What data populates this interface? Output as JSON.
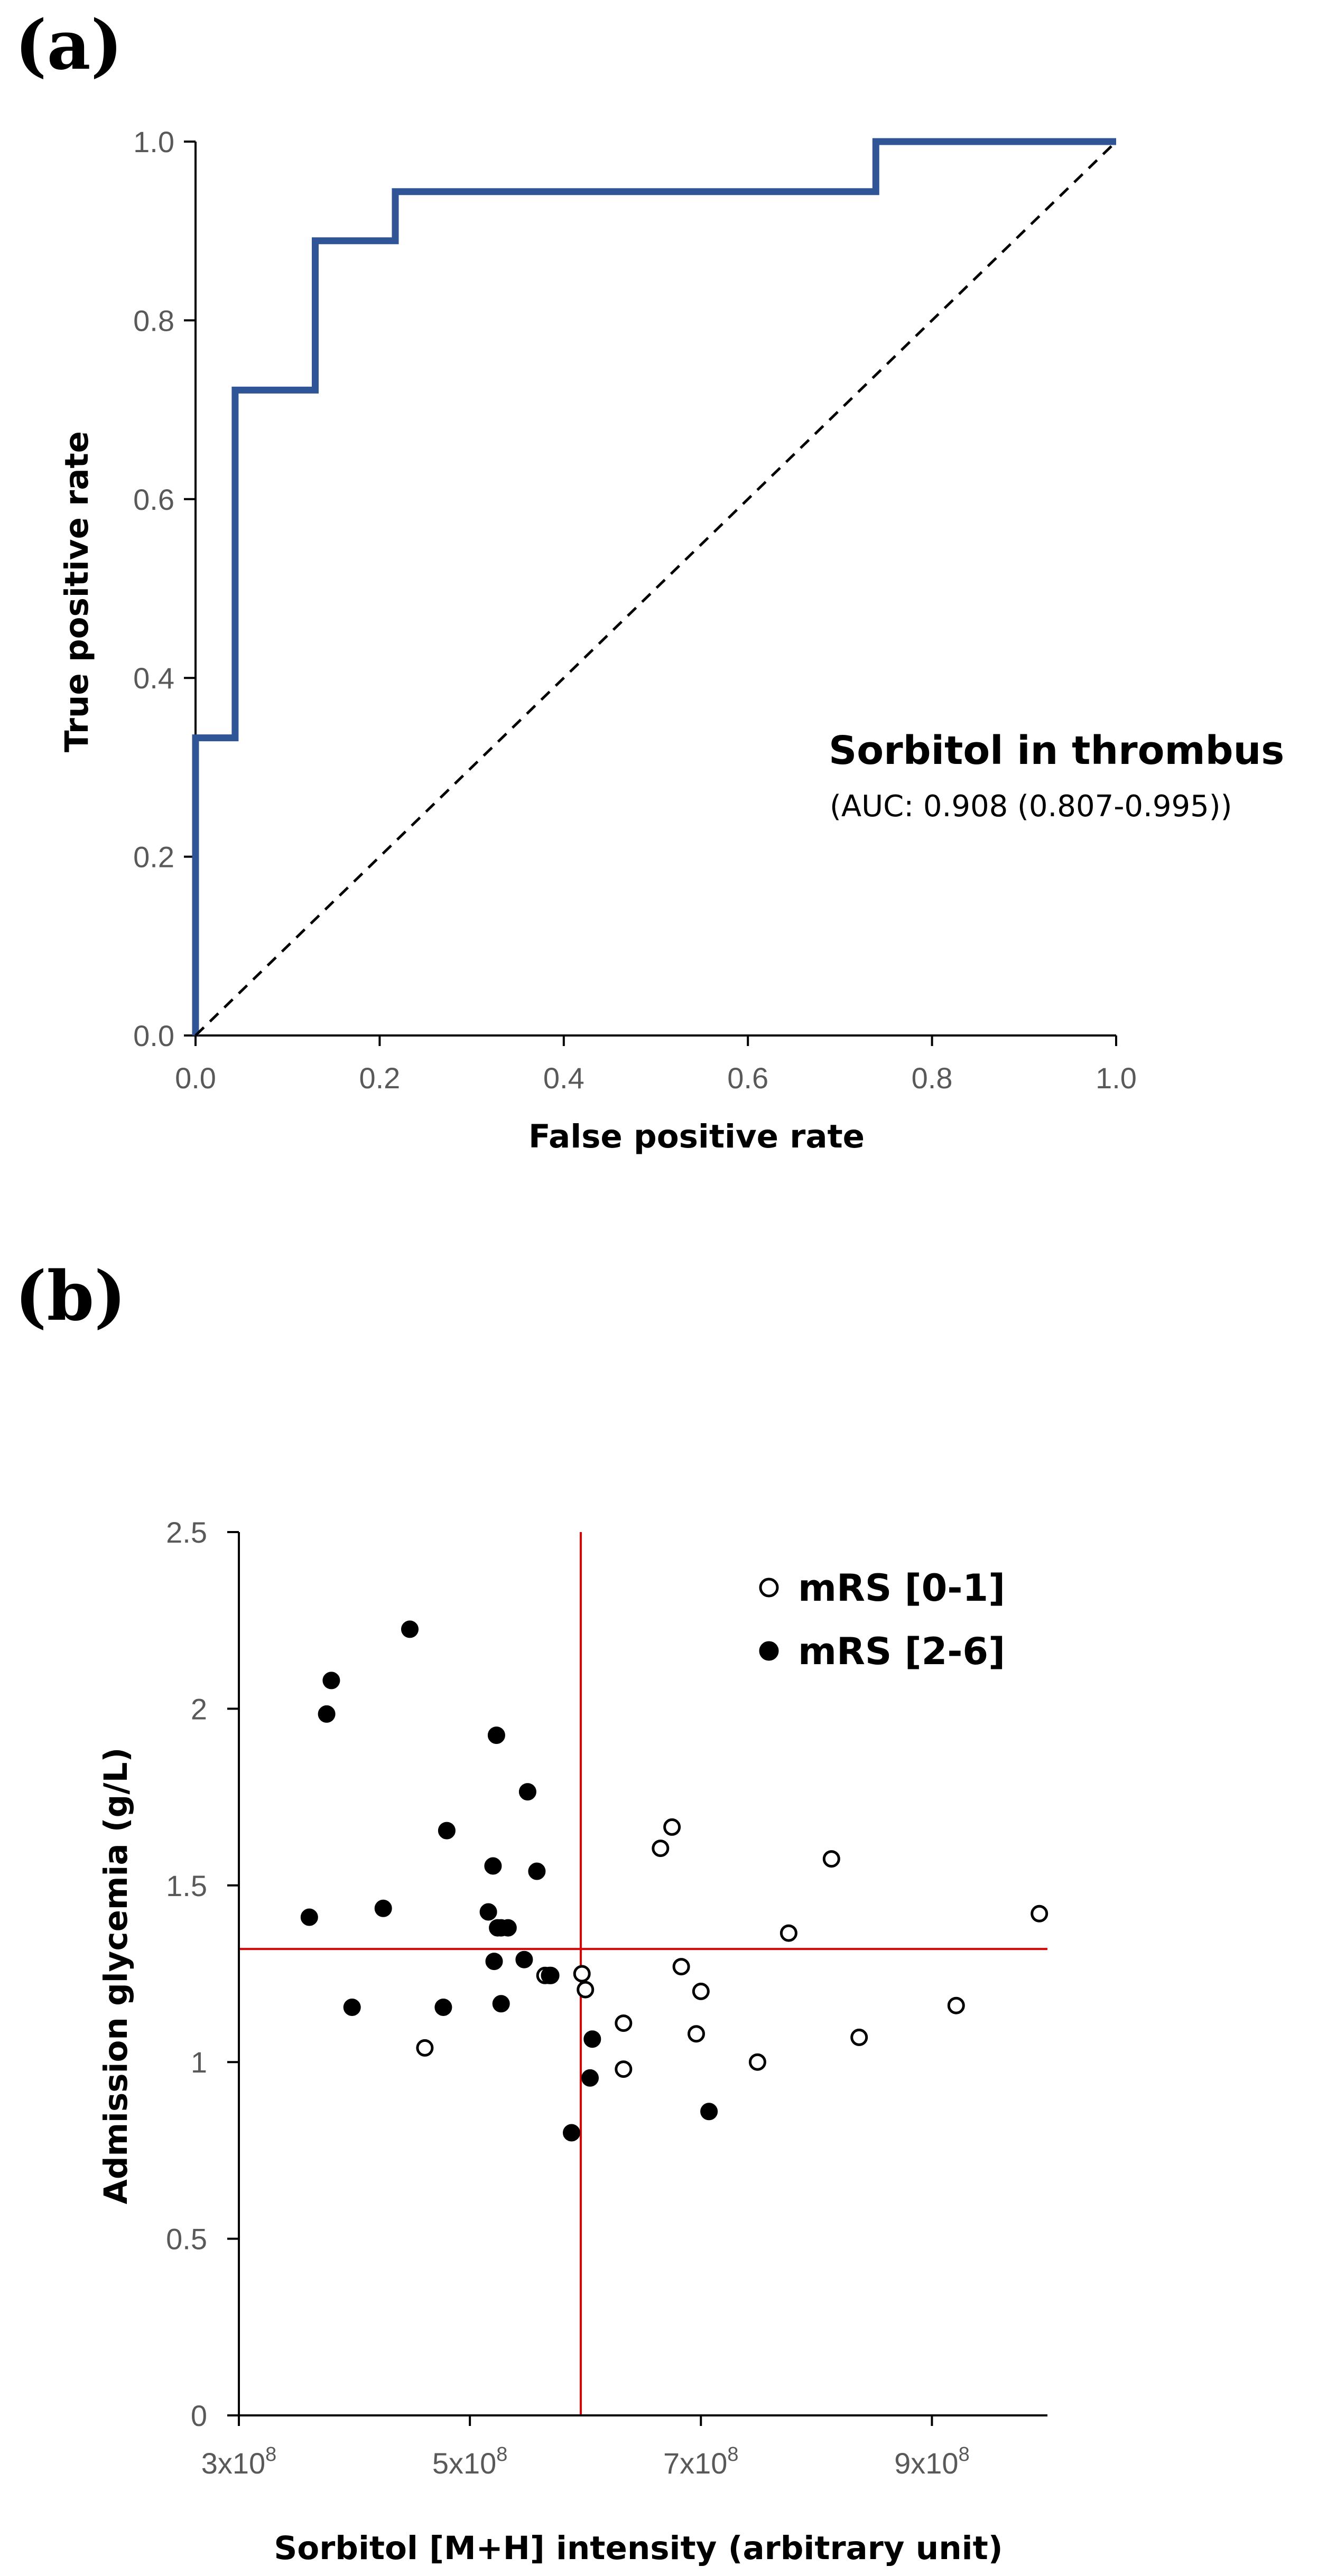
{
  "panels": {
    "a_label": "(a)",
    "b_label": "(b)"
  },
  "chart_data": [
    {
      "type": "line",
      "title": "",
      "xlabel": "False positive rate",
      "ylabel": "True positive rate",
      "xlim": [
        0,
        1
      ],
      "ylim": [
        0,
        1
      ],
      "xticks": [
        "0.0",
        "0.2",
        "0.4",
        "0.6",
        "0.8",
        "1.0"
      ],
      "yticks": [
        "0.0",
        "0.2",
        "0.4",
        "0.6",
        "0.8",
        "1.0"
      ],
      "grid": false,
      "annotation": {
        "title": "Sorbitol in thrombus",
        "subtitle": "(AUC: 0.908 (0.807-0.995))"
      },
      "series": [
        {
          "kind": "step",
          "color": "#2f5597",
          "x": [
            0,
            0,
            0.043,
            0.043,
            0.13,
            0.13,
            0.217,
            0.217,
            0.739,
            0.739,
            1.0
          ],
          "y": [
            0,
            0.333,
            0.333,
            0.722,
            0.722,
            0.889,
            0.889,
            0.944,
            0.944,
            1.0,
            1.0
          ]
        },
        {
          "kind": "reference",
          "style": "dashed",
          "color": "#000000",
          "x": [
            0,
            1
          ],
          "y": [
            0,
            1
          ]
        }
      ]
    },
    {
      "type": "scatter",
      "title": "",
      "xlabel": "Sorbitol [M+H] intensity (arbitrary unit)",
      "ylabel": "Admission glycemia (g/L)",
      "xlim": [
        300000000,
        1000000000
      ],
      "ylim": [
        0,
        2.5
      ],
      "xticks": [
        {
          "value": 300000000,
          "base": "3x10",
          "exp": "8"
        },
        {
          "value": 500000000,
          "base": "5x10",
          "exp": "8"
        },
        {
          "value": 700000000,
          "base": "7x10",
          "exp": "8"
        },
        {
          "value": 900000000,
          "base": "9x10",
          "exp": "8"
        }
      ],
      "yticks": [
        "0",
        "0.5",
        "1",
        "1.5",
        "2",
        "2.5"
      ],
      "grid": false,
      "reference_lines": {
        "color": "#e00000",
        "vertical_x": 596000000,
        "horizontal_y": 1.32
      },
      "legend": {
        "position": "top-right"
      },
      "series": [
        {
          "name": "mRS [0-1]",
          "marker": "open-circle",
          "points": [
            [
              461000000,
              1.04
            ],
            [
              565000000,
              1.245
            ],
            [
              569000000,
              1.245
            ],
            [
              597000000,
              1.25
            ],
            [
              600000000,
              1.205
            ],
            [
              633000000,
              1.11
            ],
            [
              633000000,
              0.98
            ],
            [
              665000000,
              1.605
            ],
            [
              675000000,
              1.665
            ],
            [
              683000000,
              1.27
            ],
            [
              696000000,
              1.08
            ],
            [
              700000000,
              1.2
            ],
            [
              749000000,
              1.0
            ],
            [
              776000000,
              1.365
            ],
            [
              813000000,
              1.575
            ],
            [
              837000000,
              1.07
            ],
            [
              921000000,
              1.16
            ],
            [
              993000000,
              1.42
            ]
          ]
        },
        {
          "name": "mRS [2-6]",
          "marker": "filled-circle",
          "points": [
            [
              361000000,
              1.41
            ],
            [
              376000000,
              1.985
            ],
            [
              380000000,
              2.08
            ],
            [
              398000000,
              1.155
            ],
            [
              425000000,
              1.435
            ],
            [
              448000000,
              2.225
            ],
            [
              477000000,
              1.155
            ],
            [
              480000000,
              1.655
            ],
            [
              516000000,
              1.425
            ],
            [
              520000000,
              1.555
            ],
            [
              521000000,
              1.285
            ],
            [
              523000000,
              1.925
            ],
            [
              524000000,
              1.38
            ],
            [
              527000000,
              1.38
            ],
            [
              527000000,
              1.165
            ],
            [
              533000000,
              1.38
            ],
            [
              547000000,
              1.29
            ],
            [
              550000000,
              1.765
            ],
            [
              558000000,
              1.54
            ],
            [
              570000000,
              1.245
            ],
            [
              588000000,
              0.8
            ],
            [
              604000000,
              0.955
            ],
            [
              606000000,
              1.065
            ],
            [
              707000000,
              0.86
            ]
          ]
        }
      ]
    }
  ]
}
